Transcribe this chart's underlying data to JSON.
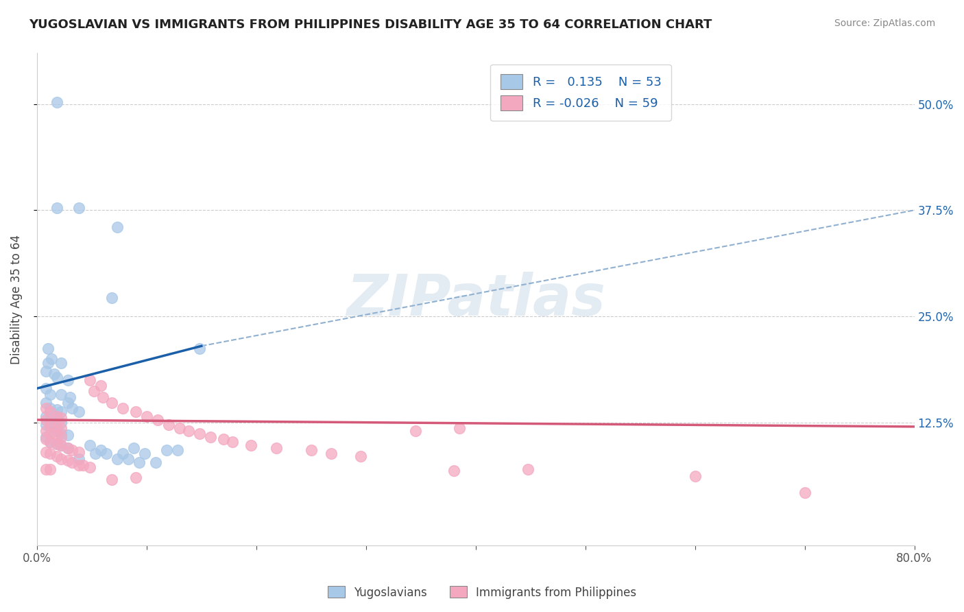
{
  "title": "YUGOSLAVIAN VS IMMIGRANTS FROM PHILIPPINES DISABILITY AGE 35 TO 64 CORRELATION CHART",
  "source": "Source: ZipAtlas.com",
  "ylabel": "Disability Age 35 to 64",
  "y_ticks": [
    0.125,
    0.25,
    0.375,
    0.5
  ],
  "y_tick_labels": [
    "12.5%",
    "25.0%",
    "37.5%",
    "50.0%"
  ],
  "xlim": [
    0.0,
    0.8
  ],
  "ylim": [
    -0.02,
    0.56
  ],
  "blue_color": "#a8c8e8",
  "pink_color": "#f4a8c0",
  "blue_line_color": "#1a5fa8",
  "pink_line_color": "#d45878",
  "gray_dash_color": "#90b0d0",
  "watermark_text": "ZIPatlas",
  "blue_line": [
    [
      0.0,
      0.165
    ],
    [
      0.15,
      0.215
    ]
  ],
  "gray_dash_line": [
    [
      0.15,
      0.215
    ],
    [
      0.8,
      0.375
    ]
  ],
  "pink_line": [
    [
      0.0,
      0.128
    ],
    [
      0.8,
      0.12
    ]
  ],
  "blue_scatter": [
    [
      0.018,
      0.502
    ],
    [
      0.038,
      0.378
    ],
    [
      0.073,
      0.355
    ],
    [
      0.018,
      0.378
    ],
    [
      0.01,
      0.212
    ],
    [
      0.013,
      0.2
    ],
    [
      0.01,
      0.195
    ],
    [
      0.022,
      0.195
    ],
    [
      0.008,
      0.185
    ],
    [
      0.016,
      0.182
    ],
    [
      0.018,
      0.178
    ],
    [
      0.028,
      0.175
    ],
    [
      0.008,
      0.165
    ],
    [
      0.012,
      0.158
    ],
    [
      0.022,
      0.158
    ],
    [
      0.03,
      0.155
    ],
    [
      0.028,
      0.148
    ],
    [
      0.008,
      0.148
    ],
    [
      0.012,
      0.142
    ],
    [
      0.018,
      0.14
    ],
    [
      0.022,
      0.138
    ],
    [
      0.008,
      0.132
    ],
    [
      0.012,
      0.13
    ],
    [
      0.018,
      0.128
    ],
    [
      0.022,
      0.125
    ],
    [
      0.008,
      0.122
    ],
    [
      0.012,
      0.12
    ],
    [
      0.018,
      0.115
    ],
    [
      0.022,
      0.112
    ],
    [
      0.028,
      0.11
    ],
    [
      0.008,
      0.108
    ],
    [
      0.012,
      0.102
    ],
    [
      0.018,
      0.1
    ],
    [
      0.022,
      0.098
    ],
    [
      0.028,
      0.095
    ],
    [
      0.068,
      0.272
    ],
    [
      0.032,
      0.142
    ],
    [
      0.038,
      0.138
    ],
    [
      0.148,
      0.212
    ],
    [
      0.078,
      0.088
    ],
    [
      0.088,
      0.095
    ],
    [
      0.098,
      0.088
    ],
    [
      0.118,
      0.092
    ],
    [
      0.128,
      0.092
    ],
    [
      0.058,
      0.092
    ],
    [
      0.048,
      0.098
    ],
    [
      0.053,
      0.088
    ],
    [
      0.063,
      0.088
    ],
    [
      0.073,
      0.082
    ],
    [
      0.083,
      0.082
    ],
    [
      0.093,
      0.078
    ],
    [
      0.108,
      0.078
    ],
    [
      0.038,
      0.082
    ]
  ],
  "pink_scatter": [
    [
      0.008,
      0.142
    ],
    [
      0.012,
      0.138
    ],
    [
      0.018,
      0.132
    ],
    [
      0.022,
      0.13
    ],
    [
      0.008,
      0.128
    ],
    [
      0.012,
      0.122
    ],
    [
      0.018,
      0.12
    ],
    [
      0.022,
      0.118
    ],
    [
      0.008,
      0.115
    ],
    [
      0.012,
      0.112
    ],
    [
      0.018,
      0.11
    ],
    [
      0.022,
      0.108
    ],
    [
      0.008,
      0.105
    ],
    [
      0.012,
      0.102
    ],
    [
      0.018,
      0.1
    ],
    [
      0.022,
      0.098
    ],
    [
      0.028,
      0.095
    ],
    [
      0.032,
      0.092
    ],
    [
      0.038,
      0.09
    ],
    [
      0.008,
      0.09
    ],
    [
      0.012,
      0.088
    ],
    [
      0.018,
      0.085
    ],
    [
      0.022,
      0.082
    ],
    [
      0.028,
      0.08
    ],
    [
      0.032,
      0.078
    ],
    [
      0.038,
      0.075
    ],
    [
      0.042,
      0.075
    ],
    [
      0.048,
      0.072
    ],
    [
      0.008,
      0.07
    ],
    [
      0.012,
      0.07
    ],
    [
      0.048,
      0.175
    ],
    [
      0.058,
      0.168
    ],
    [
      0.052,
      0.162
    ],
    [
      0.06,
      0.155
    ],
    [
      0.068,
      0.148
    ],
    [
      0.078,
      0.142
    ],
    [
      0.09,
      0.138
    ],
    [
      0.1,
      0.132
    ],
    [
      0.11,
      0.128
    ],
    [
      0.12,
      0.122
    ],
    [
      0.13,
      0.118
    ],
    [
      0.138,
      0.115
    ],
    [
      0.148,
      0.112
    ],
    [
      0.158,
      0.108
    ],
    [
      0.17,
      0.105
    ],
    [
      0.178,
      0.102
    ],
    [
      0.195,
      0.098
    ],
    [
      0.218,
      0.095
    ],
    [
      0.25,
      0.092
    ],
    [
      0.268,
      0.088
    ],
    [
      0.295,
      0.085
    ],
    [
      0.345,
      0.115
    ],
    [
      0.385,
      0.118
    ],
    [
      0.068,
      0.058
    ],
    [
      0.09,
      0.06
    ],
    [
      0.38,
      0.068
    ],
    [
      0.448,
      0.07
    ],
    [
      0.6,
      0.062
    ],
    [
      0.7,
      0.042
    ]
  ]
}
